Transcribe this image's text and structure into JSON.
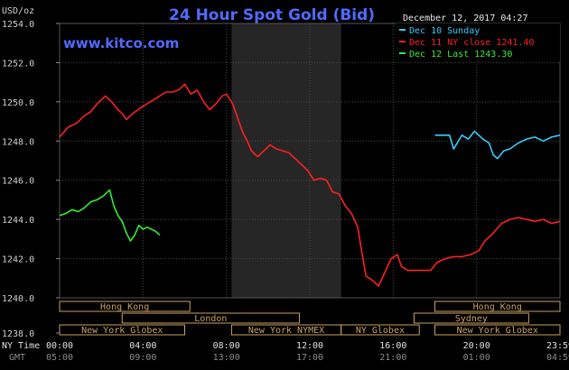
{
  "header": {
    "title": "24 Hour Spot Gold (Bid)",
    "website": "www.kitco.com",
    "timestamp": "December 12, 2017 04:27",
    "y_unit": "USD/oz",
    "row_label_top": "NY Time",
    "row_label_bottom": "GMT"
  },
  "legend": [
    {
      "text": "Dec 10 Sunday",
      "color": "#33ccff"
    },
    {
      "text": "Dec 11 NY close 1241.40",
      "color": "#ff2020"
    },
    {
      "text": "Dec 12 Last 1243.30",
      "color": "#33ee33"
    }
  ],
  "colors": {
    "background": "#000000",
    "grid": "#4a4a4a",
    "highlight_band": "#262626",
    "session_border": "#c8a060",
    "title": "#4f6bff"
  },
  "sessions": [
    {
      "label": "Hong Kong",
      "start": 0,
      "end": 6.25,
      "row": 0
    },
    {
      "label": "London",
      "start": 3,
      "end": 11.5,
      "row": 1
    },
    {
      "label": "New York Globex",
      "start": 0,
      "end": 6,
      "row": 2
    },
    {
      "label": "New York NYMEX",
      "start": 8.25,
      "end": 13.5,
      "row": 2
    },
    {
      "label": "NY Globex",
      "start": 13.5,
      "end": 17.25,
      "row": 2
    },
    {
      "label": "Hong Kong",
      "start": 18,
      "end": 24,
      "row": 0
    },
    {
      "label": "Sydney",
      "start": 17,
      "end": 22.5,
      "row": 1
    },
    {
      "label": "New York Globex",
      "start": 18,
      "end": 24,
      "row": 2
    }
  ],
  "chart_data": {
    "type": "line",
    "title": "24 Hour Spot Gold (Bid)",
    "ylabel": "USD/oz",
    "xlabel": "NY Time",
    "ylim": [
      1238.0,
      1254.0
    ],
    "xlim": [
      0,
      24
    ],
    "highlight_range": [
      8.25,
      13.5
    ],
    "y_ticks": [
      "1254.0",
      "1252.0",
      "1250.0",
      "1248.0",
      "1246.0",
      "1244.0",
      "1242.0",
      "1240.0",
      "1238.0"
    ],
    "y_tick_values": [
      1254,
      1252,
      1250,
      1248,
      1246,
      1244,
      1242,
      1240,
      1238
    ],
    "x_tick_values": [
      0,
      4,
      8,
      12,
      16,
      20,
      24
    ],
    "x_ticks_ny": [
      "00:00",
      "04:00",
      "08:00",
      "12:00",
      "16:00",
      "20:00",
      "23:59"
    ],
    "x_ticks_gmt": [
      "05:00",
      "09:00",
      "13:00",
      "17:00",
      "21:00",
      "01:00",
      "04:59"
    ],
    "series": [
      {
        "name": "Dec 10 Sunday",
        "color": "#33ccff",
        "points": [
          [
            18,
            1248.3
          ],
          [
            18.7,
            1248.3
          ],
          [
            18.9,
            1247.6
          ],
          [
            19.3,
            1248.3
          ],
          [
            19.6,
            1248.1
          ],
          [
            19.9,
            1248.5
          ],
          [
            20.3,
            1248.1
          ],
          [
            20.6,
            1247.9
          ],
          [
            20.8,
            1247.3
          ],
          [
            21.0,
            1247.1
          ],
          [
            21.3,
            1247.5
          ],
          [
            21.6,
            1247.6
          ],
          [
            22.0,
            1247.9
          ],
          [
            22.4,
            1248.1
          ],
          [
            22.8,
            1248.2
          ],
          [
            23.2,
            1248.0
          ],
          [
            23.6,
            1248.2
          ],
          [
            24.0,
            1248.3
          ]
        ]
      },
      {
        "name": "Dec 11 NY close 1241.40",
        "color": "#ff2020",
        "points": [
          [
            0,
            1248.2
          ],
          [
            0.4,
            1248.7
          ],
          [
            0.8,
            1248.9
          ],
          [
            1.2,
            1249.3
          ],
          [
            1.5,
            1249.5
          ],
          [
            1.8,
            1249.9
          ],
          [
            2.2,
            1250.3
          ],
          [
            2.5,
            1250.0
          ],
          [
            2.8,
            1249.6
          ],
          [
            3.0,
            1249.4
          ],
          [
            3.2,
            1249.1
          ],
          [
            3.5,
            1249.4
          ],
          [
            3.9,
            1249.7
          ],
          [
            4.2,
            1249.9
          ],
          [
            4.5,
            1250.1
          ],
          [
            4.8,
            1250.3
          ],
          [
            5.1,
            1250.5
          ],
          [
            5.4,
            1250.5
          ],
          [
            5.7,
            1250.6
          ],
          [
            6.0,
            1250.9
          ],
          [
            6.3,
            1250.4
          ],
          [
            6.6,
            1250.6
          ],
          [
            6.9,
            1250.0
          ],
          [
            7.2,
            1249.6
          ],
          [
            7.5,
            1249.9
          ],
          [
            7.8,
            1250.3
          ],
          [
            8.0,
            1250.4
          ],
          [
            8.3,
            1249.9
          ],
          [
            8.6,
            1249.0
          ],
          [
            8.8,
            1248.4
          ],
          [
            9.0,
            1248.0
          ],
          [
            9.2,
            1247.5
          ],
          [
            9.5,
            1247.2
          ],
          [
            9.8,
            1247.5
          ],
          [
            10.1,
            1247.8
          ],
          [
            10.4,
            1247.6
          ],
          [
            10.7,
            1247.5
          ],
          [
            11.0,
            1247.4
          ],
          [
            11.3,
            1247.1
          ],
          [
            11.6,
            1246.8
          ],
          [
            11.9,
            1246.5
          ],
          [
            12.2,
            1246.0
          ],
          [
            12.5,
            1246.1
          ],
          [
            12.8,
            1246.0
          ],
          [
            13.1,
            1245.4
          ],
          [
            13.4,
            1245.3
          ],
          [
            13.7,
            1244.7
          ],
          [
            14.0,
            1244.3
          ],
          [
            14.3,
            1243.6
          ],
          [
            14.5,
            1242.3
          ],
          [
            14.7,
            1241.1
          ],
          [
            15.0,
            1240.9
          ],
          [
            15.3,
            1240.6
          ],
          [
            15.6,
            1241.3
          ],
          [
            15.9,
            1242.0
          ],
          [
            16.2,
            1242.2
          ],
          [
            16.4,
            1241.6
          ],
          [
            16.7,
            1241.4
          ],
          [
            17.0,
            1241.4
          ],
          [
            17.4,
            1241.4
          ],
          [
            17.8,
            1241.4
          ],
          [
            18.1,
            1241.8
          ],
          [
            18.5,
            1242.0
          ],
          [
            18.9,
            1242.1
          ],
          [
            19.3,
            1242.1
          ],
          [
            19.7,
            1242.2
          ],
          [
            20.1,
            1242.4
          ],
          [
            20.4,
            1242.9
          ],
          [
            20.8,
            1243.3
          ],
          [
            21.2,
            1243.8
          ],
          [
            21.6,
            1244.0
          ],
          [
            22.0,
            1244.1
          ],
          [
            22.4,
            1244.0
          ],
          [
            22.8,
            1243.9
          ],
          [
            23.2,
            1244.0
          ],
          [
            23.6,
            1243.8
          ],
          [
            24.0,
            1243.9
          ]
        ]
      },
      {
        "name": "Dec 12 Last 1243.30",
        "color": "#33ee33",
        "points": [
          [
            0,
            1244.2
          ],
          [
            0.3,
            1244.3
          ],
          [
            0.6,
            1244.5
          ],
          [
            0.9,
            1244.4
          ],
          [
            1.2,
            1244.6
          ],
          [
            1.5,
            1244.9
          ],
          [
            1.8,
            1245.0
          ],
          [
            2.1,
            1245.2
          ],
          [
            2.4,
            1245.5
          ],
          [
            2.6,
            1244.7
          ],
          [
            2.8,
            1244.2
          ],
          [
            3.0,
            1243.9
          ],
          [
            3.2,
            1243.3
          ],
          [
            3.4,
            1242.9
          ],
          [
            3.6,
            1243.2
          ],
          [
            3.8,
            1243.7
          ],
          [
            4.0,
            1243.5
          ],
          [
            4.2,
            1243.6
          ],
          [
            4.4,
            1243.5
          ],
          [
            4.6,
            1243.4
          ],
          [
            4.8,
            1243.2
          ]
        ]
      }
    ]
  }
}
